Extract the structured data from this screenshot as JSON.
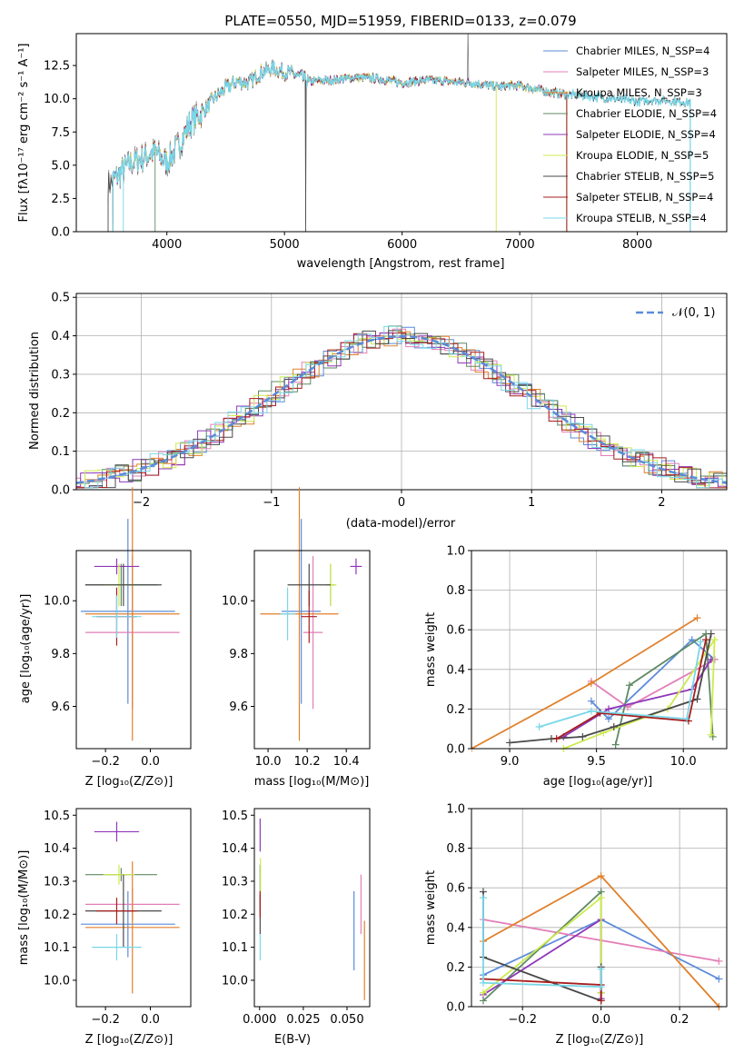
{
  "colors": {
    "series": [
      "#5b8bd9",
      "#e37fb8",
      "#e0802b",
      "#5e8a64",
      "#8f37b8",
      "#ccea4d",
      "#4a4a4a",
      "#a81d1d",
      "#78d7e8"
    ],
    "axes": "#000000",
    "grid": "#b0b0b0",
    "normal_curve": "#5b8bd9"
  },
  "chart_data": [
    {
      "id": "spectrum",
      "type": "line",
      "title": "PLATE=0550, MJD=51959, FIBERID=0133, z=0.079",
      "xlabel": "wavelength [Angstrom, rest frame]",
      "ylabel": "Flux [fλ10⁻¹⁷ erg cm⁻² s⁻¹ A⁻¹]",
      "xlim": [
        3230,
        8760
      ],
      "ylim": [
        0,
        14.9
      ],
      "xticks": [
        "4000",
        "5000",
        "6000",
        "7000",
        "8000"
      ],
      "yticks": [
        "0.0",
        "2.5",
        "5.0",
        "7.5",
        "10.0",
        "12.5"
      ],
      "grid": false,
      "legend_position": "top-right",
      "legend": [
        "Chabrier MILES, N_SSP=4",
        "Salpeter MILES, N_SSP=3",
        "Kroupa MILES, N_SSP=3",
        "Chabrier ELODIE, N_SSP=4",
        "Salpeter ELODIE, N_SSP=4",
        "Kroupa ELODIE, N_SSP=5",
        "Chabrier STELIB, N_SSP=5",
        "Salpeter STELIB, N_SSP=4",
        "Kroupa STELIB, N_SSP=4"
      ],
      "series_ranges": [
        [
          3540,
          7400
        ],
        [
          3540,
          7400
        ],
        [
          3540,
          7400
        ],
        [
          3540,
          7400
        ],
        [
          3540,
          7400
        ],
        [
          3540,
          7400
        ],
        [
          3500,
          8450
        ],
        [
          3540,
          7400
        ],
        [
          3540,
          8450
        ]
      ],
      "data_envelope": {
        "x": [
          3500,
          3700,
          3900,
          4000,
          4100,
          4200,
          4300,
          4400,
          4500,
          4600,
          4700,
          4800,
          4900,
          5000,
          5100,
          5200,
          5400,
          5600,
          5800,
          6000,
          6200,
          6400,
          6600,
          6800,
          7000,
          7200,
          7400,
          7600,
          7800,
          8000,
          8200,
          8450
        ],
        "y": [
          3.5,
          5.2,
          6.0,
          5.2,
          6.5,
          8.2,
          9.0,
          10.0,
          10.8,
          11.3,
          11.2,
          12.0,
          12.3,
          12.0,
          11.8,
          11.3,
          11.4,
          11.6,
          11.5,
          11.2,
          11.4,
          11.3,
          11.2,
          10.9,
          11.0,
          10.6,
          10.3,
          10.2,
          10.0,
          9.8,
          9.9,
          9.7
        ]
      }
    },
    {
      "id": "residuals",
      "type": "histogram",
      "xlabel": "(data-model)/error",
      "ylabel": "Normed distribution",
      "xlim": [
        -2.5,
        2.5
      ],
      "ylim": [
        0,
        0.51
      ],
      "xticks": [
        "−2",
        "−1",
        "0",
        "1",
        "2"
      ],
      "yticks": [
        "0.0",
        "0.1",
        "0.2",
        "0.3",
        "0.4",
        "0.5"
      ],
      "grid": true,
      "legend_position": "top-right",
      "legend": [
        "𝒩(0, 1)"
      ],
      "bin_width": 0.1,
      "reference_curve": "normal(0,1)"
    },
    {
      "id": "age-vs-Z",
      "type": "errorbar",
      "xlabel": "Z [log₁₀(Z/Z⊙)]",
      "ylabel": "age  [log₁₀(age/yr)]",
      "xlim": [
        -0.33,
        0.18
      ],
      "ylim": [
        9.44,
        10.19
      ],
      "xticks": [
        "−0.2",
        "0.0"
      ],
      "xtick_values": [
        -0.2,
        0.0
      ],
      "yticks": [
        "9.6",
        "9.8",
        "10.0"
      ],
      "ytick_values": [
        9.6,
        9.8,
        10.0
      ],
      "grid": false,
      "points": [
        {
          "x": -0.1,
          "y": 9.96,
          "xerr": 0.21,
          "yerr": 0.35
        },
        {
          "x": -0.08,
          "y": 9.88,
          "xerr": 0.21,
          "yerr": 0.29
        },
        {
          "x": -0.08,
          "y": 9.95,
          "xerr": 0.21,
          "yerr": 0.48
        },
        {
          "x": -0.13,
          "y": 10.06,
          "xerr": 0.16,
          "yerr": 0.08
        },
        {
          "x": -0.15,
          "y": 10.13,
          "xerr": 0.1,
          "yerr": 0.03
        },
        {
          "x": -0.14,
          "y": 10.06,
          "xerr": 0.07,
          "yerr": 0.08
        },
        {
          "x": -0.12,
          "y": 10.06,
          "xerr": 0.17,
          "yerr": 0.08
        },
        {
          "x": -0.15,
          "y": 9.94,
          "xerr": 0.09,
          "yerr": 0.11
        },
        {
          "x": -0.15,
          "y": 9.94,
          "xerr": 0.11,
          "yerr": 0.08
        }
      ]
    },
    {
      "id": "age-vs-mass",
      "type": "errorbar",
      "xlabel": "mass [log₁₀(M/M⊙)]",
      "ylabel": "",
      "xlim": [
        9.93,
        10.52
      ],
      "ylim": [
        9.44,
        10.19
      ],
      "xticks": [
        "10.0",
        "10.2",
        "10.4"
      ],
      "xtick_values": [
        10.0,
        10.2,
        10.4
      ],
      "yticks": [
        "9.6",
        "9.8",
        "10.0"
      ],
      "ytick_values": [
        9.6,
        9.8,
        10.0
      ],
      "grid": false,
      "points": [
        {
          "x": 10.17,
          "y": 9.96,
          "xerr": 0.1,
          "yerr": 0.35
        },
        {
          "x": 10.23,
          "y": 9.88,
          "xerr": 0.05,
          "yerr": 0.29
        },
        {
          "x": 10.16,
          "y": 9.95,
          "xerr": 0.2,
          "yerr": 0.48
        },
        {
          "x": 10.32,
          "y": 10.06,
          "xerr": 0.02,
          "yerr": 0.08
        },
        {
          "x": 10.45,
          "y": 10.13,
          "xerr": 0.03,
          "yerr": 0.03
        },
        {
          "x": 10.32,
          "y": 10.06,
          "xerr": 0.03,
          "yerr": 0.08
        },
        {
          "x": 10.21,
          "y": 10.06,
          "xerr": 0.11,
          "yerr": 0.08
        },
        {
          "x": 10.21,
          "y": 9.94,
          "xerr": 0.04,
          "yerr": 0.1
        },
        {
          "x": 10.1,
          "y": 9.95,
          "xerr": 0.04,
          "yerr": 0.1
        }
      ]
    },
    {
      "id": "weight-vs-age",
      "type": "line",
      "xlabel": "age  [log₁₀(age/yr)]",
      "ylabel": "mass weight",
      "xlim": [
        8.78,
        10.25
      ],
      "ylim": [
        0,
        1
      ],
      "xticks": [
        "9.0",
        "9.5",
        "10.0"
      ],
      "xtick_values": [
        9.0,
        9.5,
        10.0
      ],
      "yticks": [
        "0.0",
        "0.2",
        "0.4",
        "0.6",
        "0.8",
        "1.0"
      ],
      "ytick_values": [
        0,
        0.2,
        0.4,
        0.6,
        0.8,
        1.0
      ],
      "grid": true,
      "lines": [
        [
          [
            9.47,
            0.24
          ],
          [
            9.57,
            0.15
          ],
          [
            10.05,
            0.55
          ],
          [
            10.18,
            0.45
          ]
        ],
        [
          [
            9.47,
            0.34
          ],
          [
            9.68,
            0.21
          ],
          [
            10.18,
            0.45
          ]
        ],
        [
          [
            8.78,
            0.0
          ],
          [
            9.47,
            0.33
          ],
          [
            10.08,
            0.66
          ]
        ],
        [
          [
            9.61,
            0.02
          ],
          [
            9.69,
            0.32
          ],
          [
            10.13,
            0.58
          ],
          [
            10.17,
            0.06
          ]
        ],
        [
          [
            9.31,
            0.06
          ],
          [
            9.57,
            0.2
          ],
          [
            10.05,
            0.3
          ],
          [
            10.16,
            0.45
          ]
        ],
        [
          [
            9.31,
            0.0
          ],
          [
            9.54,
            0.08
          ],
          [
            9.91,
            0.2
          ],
          [
            10.18,
            0.55
          ],
          [
            10.16,
            0.07
          ]
        ],
        [
          [
            9.0,
            0.03
          ],
          [
            9.24,
            0.05
          ],
          [
            9.42,
            0.06
          ],
          [
            9.6,
            0.11
          ],
          [
            10.08,
            0.25
          ],
          [
            10.16,
            0.58
          ]
        ],
        [
          [
            9.27,
            0.05
          ],
          [
            9.52,
            0.18
          ],
          [
            10.03,
            0.14
          ],
          [
            10.13,
            0.55
          ]
        ],
        [
          [
            9.17,
            0.11
          ],
          [
            9.47,
            0.19
          ],
          [
            10.02,
            0.15
          ],
          [
            10.1,
            0.54
          ]
        ]
      ]
    },
    {
      "id": "mass-vs-Z",
      "type": "errorbar",
      "xlabel": "Z [log₁₀(Z/Z⊙)]",
      "ylabel": "mass [log₁₀(M/M⊙)]",
      "xlim": [
        -0.33,
        0.18
      ],
      "ylim": [
        9.92,
        10.52
      ],
      "xticks": [
        "−0.2",
        "0.0"
      ],
      "xtick_values": [
        -0.2,
        0.0
      ],
      "yticks": [
        "10.0",
        "10.1",
        "10.2",
        "10.3",
        "10.4",
        "10.5"
      ],
      "ytick_values": [
        10.0,
        10.1,
        10.2,
        10.3,
        10.4,
        10.5
      ],
      "grid": false,
      "points": [
        {
          "x": -0.1,
          "y": 10.17,
          "xerr": 0.21,
          "yerr": 0.1
        },
        {
          "x": -0.08,
          "y": 10.23,
          "xerr": 0.21,
          "yerr": 0.05
        },
        {
          "x": -0.08,
          "y": 10.16,
          "xerr": 0.21,
          "yerr": 0.2
        },
        {
          "x": -0.13,
          "y": 10.32,
          "xerr": 0.16,
          "yerr": 0.02
        },
        {
          "x": -0.15,
          "y": 10.45,
          "xerr": 0.1,
          "yerr": 0.03
        },
        {
          "x": -0.14,
          "y": 10.32,
          "xerr": 0.07,
          "yerr": 0.03
        },
        {
          "x": -0.12,
          "y": 10.21,
          "xerr": 0.17,
          "yerr": 0.11
        },
        {
          "x": -0.15,
          "y": 10.21,
          "xerr": 0.09,
          "yerr": 0.04
        },
        {
          "x": -0.15,
          "y": 10.1,
          "xerr": 0.11,
          "yerr": 0.04
        }
      ]
    },
    {
      "id": "mass-vs-EBV",
      "type": "errorbar",
      "xlabel": "E(B-V)",
      "ylabel": "",
      "xlim": [
        -0.003,
        0.063
      ],
      "ylim": [
        9.92,
        10.52
      ],
      "xticks": [
        "0.000",
        "0.025",
        "0.050"
      ],
      "xtick_values": [
        0.0,
        0.025,
        0.05
      ],
      "yticks": [
        "10.0",
        "10.1",
        "10.2",
        "10.3",
        "10.4",
        "10.5"
      ],
      "ytick_values": [
        10.0,
        10.1,
        10.2,
        10.3,
        10.4,
        10.5
      ],
      "grid": false,
      "points": [
        {
          "x": 0.054,
          "y": 10.15,
          "xerr": 0,
          "yerr": 0.12
        },
        {
          "x": 0.058,
          "y": 10.23,
          "xerr": 0,
          "yerr": 0.09
        },
        {
          "x": 0.06,
          "y": 10.06,
          "xerr": 0,
          "yerr": 0.12
        },
        {
          "x": 0.0003,
          "y": 10.28,
          "xerr": 0,
          "yerr": 0.07
        },
        {
          "x": 0.0003,
          "y": 10.44,
          "xerr": 0,
          "yerr": 0.05
        },
        {
          "x": 0.0005,
          "y": 10.32,
          "xerr": 0,
          "yerr": 0.05
        },
        {
          "x": 0.0003,
          "y": 10.2,
          "xerr": 0,
          "yerr": 0.06
        },
        {
          "x": 0.0003,
          "y": 10.23,
          "xerr": 0,
          "yerr": 0.04
        },
        {
          "x": 0.0003,
          "y": 10.1,
          "xerr": 0,
          "yerr": 0.04
        }
      ]
    },
    {
      "id": "weight-vs-Z",
      "type": "line",
      "xlabel": "Z [log₁₀(Z/Z⊙)]",
      "ylabel": "mass weight",
      "xlim": [
        -0.33,
        0.32
      ],
      "ylim": [
        0,
        1
      ],
      "xticks": [
        "−0.2",
        "0.0",
        "0.2"
      ],
      "xtick_values": [
        -0.2,
        0.0,
        0.2
      ],
      "yticks": [
        "0.0",
        "0.2",
        "0.4",
        "0.6",
        "0.8",
        "1.0"
      ],
      "ytick_values": [
        0,
        0.2,
        0.4,
        0.6,
        0.8,
        1.0
      ],
      "grid": true,
      "lines": [
        [
          [
            -0.3,
            0.16
          ],
          [
            0.0,
            0.44
          ],
          [
            0.3,
            0.14
          ]
        ],
        [
          [
            -0.3,
            0.44
          ],
          [
            0.3,
            0.23
          ]
        ],
        [
          [
            -0.3,
            0.33
          ],
          [
            0.0,
            0.66
          ],
          [
            0.3,
            0.0
          ]
        ],
        [
          [
            -0.3,
            0.03
          ],
          [
            0.0,
            0.58
          ],
          [
            0.0,
            0.07
          ]
        ],
        [
          [
            -0.3,
            0.06
          ],
          [
            0.0,
            0.44
          ],
          [
            0.0,
            0.04
          ]
        ],
        [
          [
            -0.3,
            0.07
          ],
          [
            0.0,
            0.55
          ],
          [
            0.0,
            0.07
          ]
        ],
        [
          [
            -0.3,
            0.58
          ],
          [
            -0.3,
            0.25
          ],
          [
            0.0,
            0.03
          ],
          [
            0.0,
            0.2
          ]
        ],
        [
          [
            -0.3,
            0.14
          ],
          [
            0.0,
            0.11
          ],
          [
            0.0,
            0.03
          ]
        ],
        [
          [
            -0.3,
            0.55
          ],
          [
            -0.3,
            0.12
          ],
          [
            0.0,
            0.1
          ],
          [
            0.0,
            0.19
          ]
        ]
      ]
    }
  ]
}
